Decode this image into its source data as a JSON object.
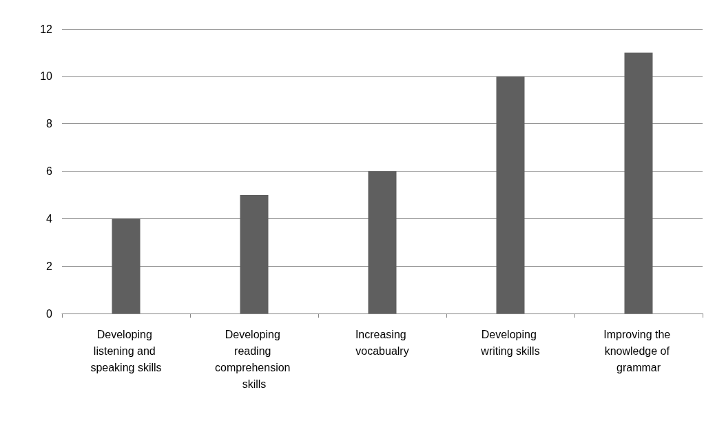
{
  "chart_data": {
    "type": "bar",
    "categories": [
      "Developing listening and speaking skills",
      "Developing reading comprehension skills",
      "Increasing vocabualry",
      "Developing writing skills",
      "Improving the knowledge of grammar"
    ],
    "values": [
      4,
      5,
      6,
      10,
      11
    ],
    "color": "#5f5f5f",
    "ylim": [
      0,
      12
    ],
    "yticks": [
      0,
      2,
      4,
      6,
      8,
      10,
      12
    ],
    "grid": "y"
  }
}
